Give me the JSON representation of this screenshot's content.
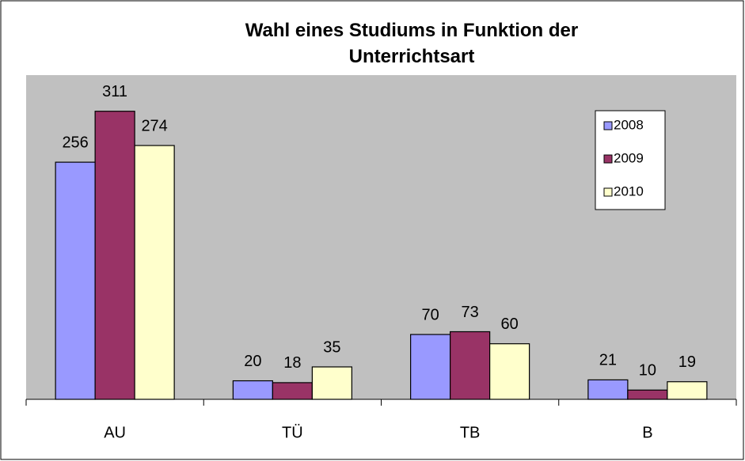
{
  "chart_data": {
    "type": "bar",
    "title": "Wahl eines Studiums in Funktion der Unterrichtsart",
    "categories": [
      "AU",
      "TÜ",
      "TB",
      "B"
    ],
    "series": [
      {
        "name": "2008",
        "color": "#9999ff",
        "values": [
          256,
          20,
          70,
          21
        ]
      },
      {
        "name": "2009",
        "color": "#993366",
        "values": [
          311,
          18,
          73,
          10
        ]
      },
      {
        "name": "2010",
        "color": "#ffffcc",
        "values": [
          274,
          35,
          60,
          19
        ]
      }
    ],
    "ylim": [
      0,
      350
    ],
    "legend": "upper right",
    "data_labels": true
  }
}
